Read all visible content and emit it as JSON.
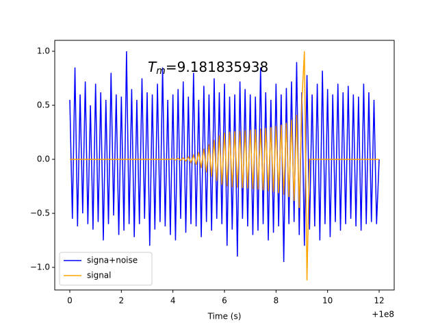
{
  "chart_data": {
    "type": "line",
    "annotation": {
      "symbol": "T",
      "subscript": "m",
      "text": "=9.181835938"
    },
    "x_label": "Time (s)",
    "x_offset_label": "+1e8",
    "x": [
      0,
      0.1,
      0.2,
      0.3,
      0.4,
      0.5,
      0.6,
      0.7,
      0.8,
      0.9,
      1,
      1.1,
      1.2,
      1.3,
      1.4,
      1.5,
      1.6,
      1.7,
      1.8,
      1.9,
      2,
      2.1,
      2.2,
      2.3,
      2.4,
      2.5,
      2.6,
      2.7,
      2.8,
      2.9,
      3,
      3.1,
      3.2,
      3.3,
      3.4,
      3.5,
      3.6,
      3.7,
      3.8,
      3.9,
      4,
      4.1,
      4.2,
      4.3,
      4.4,
      4.5,
      4.6,
      4.7,
      4.8,
      4.9,
      5,
      5.1,
      5.2,
      5.3,
      5.4,
      5.5,
      5.6,
      5.7,
      5.8,
      5.9,
      6,
      6.1,
      6.2,
      6.3,
      6.4,
      6.5,
      6.6,
      6.7,
      6.8,
      6.9,
      7,
      7.1,
      7.2,
      7.3,
      7.4,
      7.5,
      7.6,
      7.7,
      7.8,
      7.9,
      8,
      8.1,
      8.2,
      8.3,
      8.4,
      8.5,
      8.6,
      8.7,
      8.8,
      8.9,
      9,
      9.1,
      9.2,
      9.3,
      9.4,
      9.5,
      9.6,
      9.7,
      9.8,
      9.9,
      10,
      10.1,
      10.2,
      10.3,
      10.4,
      10.5,
      10.6,
      10.7,
      10.8,
      10.9,
      11,
      11.1,
      11.2,
      11.3,
      11.4,
      11.5,
      11.6,
      11.7,
      11.8,
      11.9,
      12
    ],
    "series": [
      {
        "name": "signa+noise",
        "color": "#0000ff",
        "values": [
          0.55,
          -0.55,
          0.85,
          -0.62,
          0.6,
          -0.5,
          0.72,
          -0.6,
          0.5,
          -0.65,
          0.7,
          -0.58,
          0.62,
          -0.75,
          0.55,
          -0.6,
          0.8,
          -0.52,
          0.6,
          -0.7,
          0.58,
          -0.66,
          1.0,
          -0.6,
          0.65,
          -0.72,
          0.55,
          -0.6,
          0.75,
          -0.55,
          0.62,
          -0.8,
          0.6,
          -0.65,
          0.7,
          -0.58,
          0.85,
          -0.62,
          0.55,
          -0.7,
          0.6,
          -0.75,
          0.65,
          -0.55,
          0.72,
          -0.68,
          0.58,
          -0.6,
          0.8,
          -0.62,
          0.55,
          -0.72,
          0.68,
          -0.58,
          0.6,
          -0.66,
          0.75,
          -0.55,
          0.62,
          -0.6,
          0.7,
          -0.8,
          0.58,
          -0.65,
          0.6,
          -0.9,
          0.72,
          -0.55,
          0.65,
          -0.62,
          0.6,
          -0.7,
          0.58,
          -0.66,
          0.85,
          -0.6,
          0.62,
          -0.75,
          0.55,
          -0.68,
          0.7,
          -0.62,
          0.6,
          -0.95,
          0.66,
          -0.6,
          0.72,
          -0.58,
          0.9,
          -0.7,
          0.62,
          -0.8,
          0.78,
          -0.65,
          0.6,
          -0.62,
          0.7,
          -0.75,
          0.82,
          -0.6,
          0.65,
          -0.72,
          0.6,
          -0.58,
          0.7,
          -0.66,
          0.62,
          -0.6,
          0.68,
          -0.55,
          0.6,
          -0.62,
          0.58,
          -0.66,
          0.7,
          -0.6,
          0.62,
          -0.58,
          0.55,
          -0.6,
          0.0
        ]
      },
      {
        "name": "signal",
        "color": "#ffa500",
        "values": [
          0,
          0,
          0,
          0,
          0,
          0,
          0,
          0,
          0,
          0,
          0,
          0,
          0,
          0,
          0,
          0,
          0,
          0,
          0,
          0,
          0,
          0,
          0,
          0,
          0,
          0,
          0,
          0,
          0,
          0,
          0,
          0,
          0,
          0,
          0,
          0,
          0,
          0,
          0,
          0,
          0.005,
          -0.006,
          0.008,
          -0.01,
          0.013,
          -0.017,
          0.022,
          -0.03,
          0.04,
          -0.05,
          0.065,
          -0.08,
          0.1,
          -0.12,
          0.14,
          -0.16,
          0.18,
          -0.2,
          0.22,
          -0.235,
          0.245,
          -0.25,
          0.255,
          -0.258,
          0.26,
          -0.262,
          0.264,
          -0.266,
          0.268,
          -0.27,
          0.272,
          -0.275,
          0.278,
          -0.28,
          0.283,
          -0.286,
          0.29,
          -0.294,
          0.298,
          -0.302,
          0.307,
          -0.313,
          0.32,
          -0.328,
          0.338,
          -0.35,
          0.365,
          -0.385,
          0.41,
          -0.45,
          0.52,
          1.0,
          -1.12,
          0,
          0,
          0,
          0,
          0,
          0,
          0,
          0,
          0,
          0,
          0,
          0,
          0,
          0,
          0,
          0,
          0,
          0,
          0,
          0,
          0,
          0,
          0,
          0,
          0,
          0,
          0,
          0
        ]
      }
    ],
    "xlim": [
      -0.584,
      12.584
    ],
    "xticks": [
      0,
      2,
      4,
      6,
      8,
      10,
      12
    ],
    "ylim": [
      -1.209,
      1.101
    ],
    "yticks": [
      {
        "value": -1,
        "label": "−1.0"
      },
      {
        "value": -0.5,
        "label": "−0.5"
      },
      {
        "value": 0,
        "label": "0.0"
      },
      0.5,
      {
        "value": 1,
        "label": "1.0"
      }
    ],
    "legend": "lower left"
  }
}
